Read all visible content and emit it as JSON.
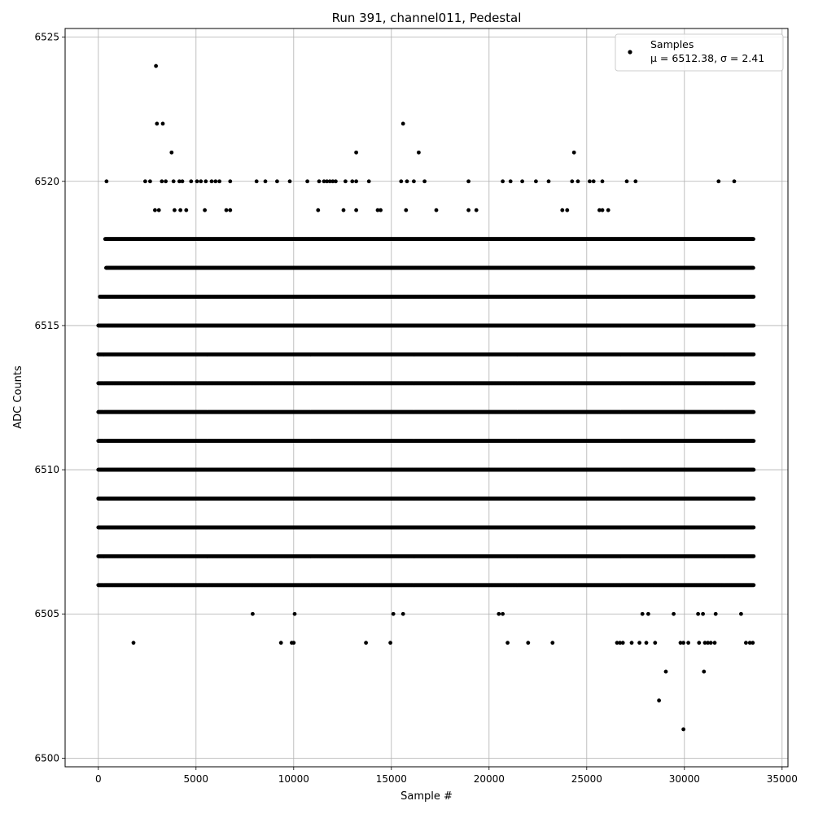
{
  "chart_data": {
    "type": "scatter",
    "title": "Run 391, channel011, Pedestal",
    "xlabel": "Sample #",
    "ylabel": "ADC Counts",
    "xlim": [
      -1700,
      35300
    ],
    "ylim": [
      6499.7,
      6525.3
    ],
    "xticks": [
      0,
      5000,
      10000,
      15000,
      20000,
      25000,
      30000,
      35000
    ],
    "yticks": [
      6500,
      6505,
      6510,
      6515,
      6520,
      6525
    ],
    "grid": true,
    "marker_color": "#000000",
    "legend": {
      "placement": "top-right",
      "series_label": "Samples",
      "stats_prefix": "μ = 6512.38, ",
      "stats_suffix": "σ = 2.41"
    },
    "series": [
      {
        "name": "Samples",
        "bands": [
          {
            "y": 6510,
            "x_range": [
              0,
              33550
            ]
          },
          {
            "y": 6511,
            "x_range": [
              0,
              33550
            ]
          },
          {
            "y": 6512,
            "x_range": [
              0,
              33550
            ]
          },
          {
            "y": 6513,
            "x_range": [
              0,
              33550
            ]
          },
          {
            "y": 6514,
            "x_range": [
              0,
              33550
            ]
          },
          {
            "y": 6515,
            "x_range": [
              0,
              33550
            ]
          },
          {
            "y": 6516,
            "x_range": [
              80,
              33550
            ]
          },
          {
            "y": 6508,
            "x_range": [
              0,
              33550
            ]
          },
          {
            "y": 6509,
            "x_range": [
              0,
              33550
            ]
          },
          {
            "y": 6518,
            "x_range": [
              350,
              33550
            ]
          },
          {
            "y": 6517,
            "x_range": [
              400,
              33550
            ]
          },
          {
            "y": 6507,
            "x_range": [
              0,
              33550
            ]
          },
          {
            "y": 6506,
            "x_range": [
              0,
              33550
            ]
          }
        ],
        "points": [
          [
            420,
            6520
          ],
          [
            2400,
            6520
          ],
          [
            2650,
            6520
          ],
          [
            3250,
            6520
          ],
          [
            3450,
            6520
          ],
          [
            3850,
            6520
          ],
          [
            4150,
            6520
          ],
          [
            4300,
            6520
          ],
          [
            4750,
            6520
          ],
          [
            5050,
            6520
          ],
          [
            5250,
            6520
          ],
          [
            5500,
            6520
          ],
          [
            5800,
            6520
          ],
          [
            6000,
            6520
          ],
          [
            6200,
            6520
          ],
          [
            6750,
            6520
          ],
          [
            8100,
            6520
          ],
          [
            8550,
            6520
          ],
          [
            9150,
            6520
          ],
          [
            9800,
            6520
          ],
          [
            10700,
            6520
          ],
          [
            11300,
            6520
          ],
          [
            11550,
            6520
          ],
          [
            11700,
            6520
          ],
          [
            11850,
            6520
          ],
          [
            12000,
            6520
          ],
          [
            12150,
            6520
          ],
          [
            12650,
            6520
          ],
          [
            13000,
            6520
          ],
          [
            13200,
            6520
          ],
          [
            13850,
            6520
          ],
          [
            15500,
            6520
          ],
          [
            15800,
            6520
          ],
          [
            16150,
            6520
          ],
          [
            16700,
            6520
          ],
          [
            18950,
            6520
          ],
          [
            20700,
            6520
          ],
          [
            21100,
            6520
          ],
          [
            21700,
            6520
          ],
          [
            22400,
            6520
          ],
          [
            23050,
            6520
          ],
          [
            24250,
            6520
          ],
          [
            24550,
            6520
          ],
          [
            25150,
            6520
          ],
          [
            25350,
            6520
          ],
          [
            25800,
            6520
          ],
          [
            27050,
            6520
          ],
          [
            27500,
            6520
          ],
          [
            31750,
            6520
          ],
          [
            32550,
            6520
          ],
          [
            2900,
            6519
          ],
          [
            3100,
            6519
          ],
          [
            3900,
            6519
          ],
          [
            4200,
            6519
          ],
          [
            4500,
            6519
          ],
          [
            5450,
            6519
          ],
          [
            6550,
            6519
          ],
          [
            6750,
            6519
          ],
          [
            11250,
            6519
          ],
          [
            12550,
            6519
          ],
          [
            13200,
            6519
          ],
          [
            14300,
            6519
          ],
          [
            14450,
            6519
          ],
          [
            15750,
            6519
          ],
          [
            17300,
            6519
          ],
          [
            18950,
            6519
          ],
          [
            19350,
            6519
          ],
          [
            23750,
            6519
          ],
          [
            24000,
            6519
          ],
          [
            25650,
            6519
          ],
          [
            25800,
            6519
          ],
          [
            26100,
            6519
          ],
          [
            3000,
            6522
          ],
          [
            3300,
            6522
          ],
          [
            15600,
            6522
          ],
          [
            3750,
            6521
          ],
          [
            13200,
            6521
          ],
          [
            16400,
            6521
          ],
          [
            24350,
            6521
          ],
          [
            2950,
            6524
          ],
          [
            7900,
            6505
          ],
          [
            10050,
            6505
          ],
          [
            15100,
            6505
          ],
          [
            15600,
            6505
          ],
          [
            20500,
            6505
          ],
          [
            20700,
            6505
          ],
          [
            27850,
            6505
          ],
          [
            28150,
            6505
          ],
          [
            29450,
            6505
          ],
          [
            30700,
            6505
          ],
          [
            30950,
            6505
          ],
          [
            31600,
            6505
          ],
          [
            32900,
            6505
          ],
          [
            1800,
            6504
          ],
          [
            9350,
            6504
          ],
          [
            9900,
            6504
          ],
          [
            10000,
            6504
          ],
          [
            13700,
            6504
          ],
          [
            14950,
            6504
          ],
          [
            20950,
            6504
          ],
          [
            22000,
            6504
          ],
          [
            23250,
            6504
          ],
          [
            26550,
            6504
          ],
          [
            26700,
            6504
          ],
          [
            26850,
            6504
          ],
          [
            27300,
            6504
          ],
          [
            27700,
            6504
          ],
          [
            28050,
            6504
          ],
          [
            28500,
            6504
          ],
          [
            29800,
            6504
          ],
          [
            29950,
            6504
          ],
          [
            30200,
            6504
          ],
          [
            30750,
            6504
          ],
          [
            31050,
            6504
          ],
          [
            31200,
            6504
          ],
          [
            31350,
            6504
          ],
          [
            31550,
            6504
          ],
          [
            33150,
            6504
          ],
          [
            33350,
            6504
          ],
          [
            33500,
            6504
          ],
          [
            29050,
            6503
          ],
          [
            31000,
            6503
          ],
          [
            28700,
            6502
          ],
          [
            29950,
            6501
          ]
        ]
      }
    ]
  }
}
